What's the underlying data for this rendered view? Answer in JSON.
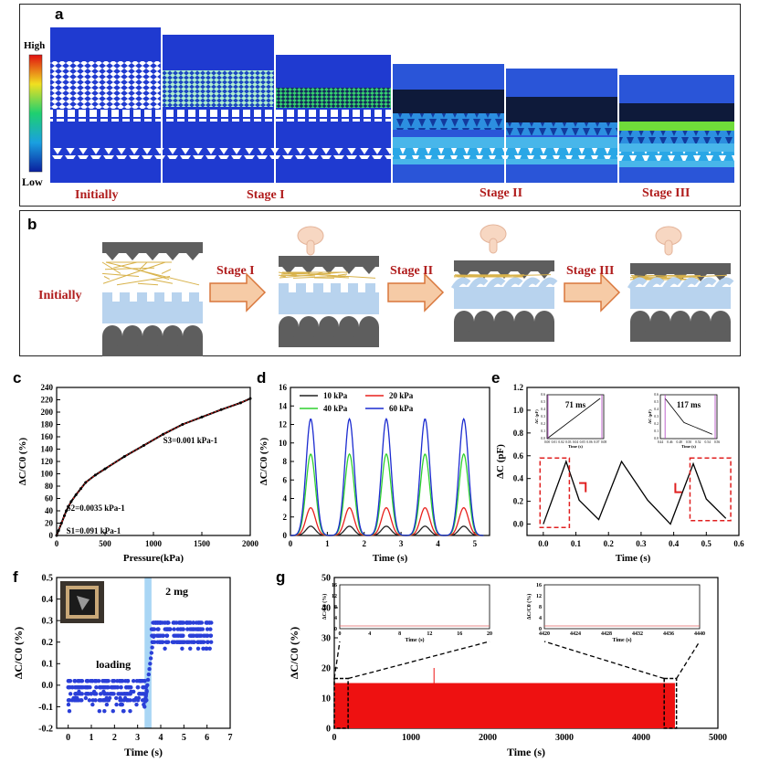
{
  "panels": {
    "a": "a",
    "b": "b",
    "c": "c",
    "d": "d",
    "e": "e",
    "f": "f",
    "g": "g"
  },
  "panel_a": {
    "colorbar_high": "High",
    "colorbar_low": "Low",
    "stages": [
      "Initially",
      "Stage I",
      "Stage II",
      "Stage III"
    ]
  },
  "panel_b": {
    "initial": "Initially",
    "stages": [
      "Stage I",
      "Stage II",
      "Stage III"
    ]
  },
  "colors": {
    "stage_red": "#b01c1c",
    "sim_blue": "#1e3fd6",
    "light_blue": "#b8d3ee",
    "dark_gray": "#5e5e5e",
    "fiber": "#d8b24a",
    "arrow_fill": "#f6cba6",
    "arrow_stroke": "#d9773c",
    "series_red": "#e8211d"
  },
  "chart_data": [
    {
      "id": "c",
      "type": "line",
      "xlabel": "Pressure(kPa)",
      "ylabel": "ΔC/C0 (%)",
      "xlim": [
        0,
        2000
      ],
      "ylim": [
        0,
        240
      ],
      "xticks": [
        "0",
        "500",
        "1000",
        "1500",
        "2000"
      ],
      "yticks": [
        "0",
        "20",
        "40",
        "60",
        "80",
        "100",
        "120",
        "140",
        "160",
        "180",
        "200",
        "220",
        "240"
      ],
      "annotations": [
        "S1=0.091 kPa-1",
        "S2=0.0035 kPa-1",
        "S3=0.001 kPa-1"
      ],
      "x": [
        0,
        20,
        50,
        80,
        100,
        150,
        200,
        250,
        300,
        400,
        500,
        700,
        900,
        1100,
        1300,
        1500,
        1700,
        1900,
        2000
      ],
      "y": [
        0,
        8,
        20,
        32,
        40,
        55,
        66,
        76,
        86,
        98,
        108,
        128,
        146,
        164,
        180,
        192,
        204,
        215,
        222
      ]
    },
    {
      "id": "d",
      "type": "line",
      "xlabel": "Time (s)",
      "ylabel": "ΔC/C0 (%)",
      "xlim": [
        0,
        5.4
      ],
      "ylim": [
        0,
        16
      ],
      "xticks": [
        "0",
        "1",
        "2",
        "3",
        "4",
        "5"
      ],
      "yticks": [
        "0",
        "2",
        "4",
        "6",
        "8",
        "10",
        "12",
        "14",
        "16"
      ],
      "peaks_x": [
        0.55,
        1.6,
        2.6,
        3.65,
        4.7
      ],
      "series": [
        {
          "name": "10 kPa",
          "peak": 1.0,
          "color": "#222222"
        },
        {
          "name": "20 kPa",
          "peak": 3.0,
          "color": "#e8211d"
        },
        {
          "name": "40 kPa",
          "peak": 8.8,
          "color": "#2fd12f"
        },
        {
          "name": "60 kPa",
          "peak": 12.6,
          "color": "#1b2bd0"
        }
      ]
    },
    {
      "id": "e",
      "type": "line",
      "xlabel": "Time (s)",
      "ylabel": "ΔC (pF)",
      "xlim": [
        -0.05,
        0.6
      ],
      "ylim": [
        -0.1,
        1.2
      ],
      "xticks": [
        "0.0",
        "0.1",
        "0.2",
        "0.3",
        "0.4",
        "0.5",
        "0.6"
      ],
      "yticks": [
        "0.0",
        "0.2",
        "0.4",
        "0.6",
        "0.8",
        "1.0",
        "1.2"
      ],
      "x": [
        0,
        0.07,
        0.11,
        0.17,
        0.24,
        0.32,
        0.39,
        0.46,
        0.5,
        0.56
      ],
      "y": [
        0,
        0.55,
        0.21,
        0.04,
        0.55,
        0.21,
        0.0,
        0.53,
        0.22,
        0.05
      ],
      "insets": [
        {
          "label": "71 ms",
          "xlabel": "Time (s)",
          "ylabel": "ΔC (pF)",
          "xticks": [
            "0.00",
            "0.01",
            "0.02",
            "0.03",
            "0.04",
            "0.05",
            "0.06",
            "0.07",
            "0.08"
          ],
          "yticks": [
            "0.0",
            "0.1",
            "0.2",
            "0.3",
            "0.4",
            "0.5",
            "0.6"
          ]
        },
        {
          "label": "117 ms",
          "xlabel": "Time (s)",
          "ylabel": "ΔC (pF)",
          "xticks": [
            "0.44",
            "0.46",
            "0.48",
            "0.50",
            "0.52",
            "0.54",
            "0.56"
          ],
          "yticks": [
            "0.0",
            "0.1",
            "0.2",
            "0.3",
            "0.4",
            "0.5",
            "0.6"
          ]
        }
      ]
    },
    {
      "id": "f",
      "type": "scatter",
      "xlabel": "Time (s)",
      "ylabel": "ΔC/C0 (%)",
      "xlim": [
        -0.5,
        7
      ],
      "ylim": [
        -0.2,
        0.5
      ],
      "xticks": [
        "0",
        "1",
        "2",
        "3",
        "4",
        "5",
        "6",
        "7"
      ],
      "yticks": [
        "-0.2",
        "-0.1",
        "0.0",
        "0.1",
        "0.2",
        "0.3",
        "0.4",
        "0.5"
      ],
      "annotations": [
        "2 mg",
        "loading"
      ],
      "loading_span": [
        3.3,
        3.6
      ],
      "before_level": -0.02,
      "after_level": 0.24
    },
    {
      "id": "g",
      "type": "area",
      "xlabel": "Time (s)",
      "ylabel": "ΔC/C0 (%)",
      "xlim": [
        0,
        5000
      ],
      "ylim": [
        0,
        50
      ],
      "xticks": [
        "0",
        "1000",
        "2000",
        "3000",
        "4000",
        "5000"
      ],
      "yticks": [
        "0",
        "10",
        "20",
        "30",
        "40",
        "50"
      ],
      "data_range": [
        0,
        4440
      ],
      "level": 15,
      "insets": [
        {
          "ylabel": "ΔC/C0 (%)",
          "xlabel": "Time (s)",
          "xticks": [
            "0",
            "4",
            "8",
            "12",
            "16",
            "20"
          ],
          "yticks": [
            "0",
            "4",
            "8",
            "12",
            "16"
          ]
        },
        {
          "ylabel": "ΔC/C0 (%)",
          "xlabel": "Time (s)",
          "xticks": [
            "4420",
            "4424",
            "4428",
            "4432",
            "4436",
            "4440"
          ],
          "yticks": [
            "0",
            "4",
            "8",
            "12",
            "16"
          ]
        }
      ]
    }
  ]
}
